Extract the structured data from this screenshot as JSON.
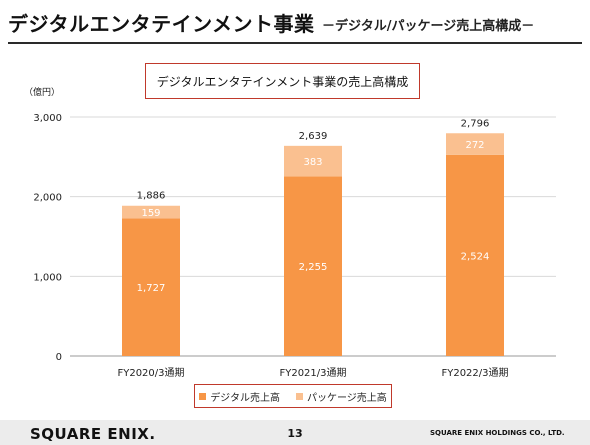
{
  "header": {
    "title": "デジタルエンタテインメント事業",
    "subtitle": "－デジタル/パッケージ売上高構成－"
  },
  "chart_data": {
    "type": "bar",
    "stacked": true,
    "title": "デジタルエンタテインメント事業の売上高構成",
    "unit_label": "（億円）",
    "categories": [
      "FY2020/3通期",
      "FY2021/3通期",
      "FY2022/3通期"
    ],
    "series": [
      {
        "name": "デジタル売上高",
        "values": [
          1727,
          2255,
          2524
        ],
        "color": "#f79646"
      },
      {
        "name": "パッケージ売上高",
        "values": [
          159,
          383,
          272
        ],
        "color": "#fac090"
      }
    ],
    "totals": [
      1886,
      2639,
      2796
    ],
    "total_labels": [
      "1,886",
      "2,639",
      "2,796"
    ],
    "value_labels": [
      [
        "1,727",
        "2,255",
        "2,524"
      ],
      [
        "159",
        "383",
        "272"
      ]
    ],
    "ylim": [
      0,
      3000
    ],
    "yticks": [
      0,
      1000,
      2000,
      3000
    ],
    "ytick_labels": [
      "0",
      "1,000",
      "2,000",
      "3,000"
    ],
    "grid": true,
    "legend_position": "bottom"
  },
  "footer": {
    "logo": "SQUARE ENIX.",
    "page": "13",
    "company": "SQUARE ENIX HOLDINGS CO., LTD."
  }
}
